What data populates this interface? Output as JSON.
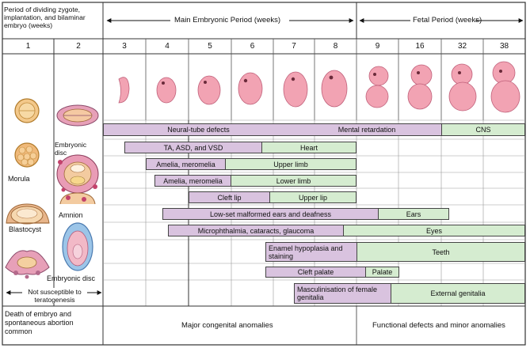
{
  "header": {
    "period_left": "Period of dividing zygote, implantation, and bilaminar embryo (weeks)",
    "main_period": "Main Embryonic Period (weeks)",
    "fetal_period": "Fetal Period (weeks)"
  },
  "weeks": [
    "1",
    "2",
    "3",
    "4",
    "5",
    "6",
    "7",
    "8",
    "9",
    "16",
    "32",
    "38"
  ],
  "early_labels": {
    "embryonic_disc_1": "Embryonic disc",
    "morula": "Morula",
    "amnion": "Amnion",
    "blastocyst": "Blastocyst",
    "embryonic_disc_2": "Embryonic disc",
    "not_susceptible": "Not susceptible to teratogenesis"
  },
  "bars": {
    "neural_tube": "Neural-tube defects",
    "mental_retardation": "Mental retardation",
    "cns": "CNS",
    "ta_asd_vsd": "TA, ASD, and VSD",
    "heart": "Heart",
    "amelia_upper": "Amelia, meromelia",
    "upper_limb": "Upper limb",
    "amelia_lower": "Amelia, meromelia",
    "lower_limb": "Lower limb",
    "cleft_lip": "Cleft lip",
    "upper_lip": "Upper lip",
    "low_set_ears": "Low-set malformed ears and deafness",
    "ears": "Ears",
    "microphthalmia": "Microphthalmia, cataracts, glaucoma",
    "eyes": "Eyes",
    "enamel": "Enamel hypoplasia and staining",
    "teeth": "Teeth",
    "cleft_palate": "Cleft palate",
    "palate": "Palate",
    "masculinisation": "Masculinisation of female genitalia",
    "external_genitalia": "External genitalia"
  },
  "footer": {
    "death": "Death of embryo and spontaneous abortion common",
    "major": "Major congenital anomalies",
    "functional": "Functional defects and minor anomalies"
  },
  "colors": {
    "purple_bar": "#d9c3df",
    "green_bar": "#d5ecd0",
    "embryo_pink": "#f2a3b3"
  }
}
